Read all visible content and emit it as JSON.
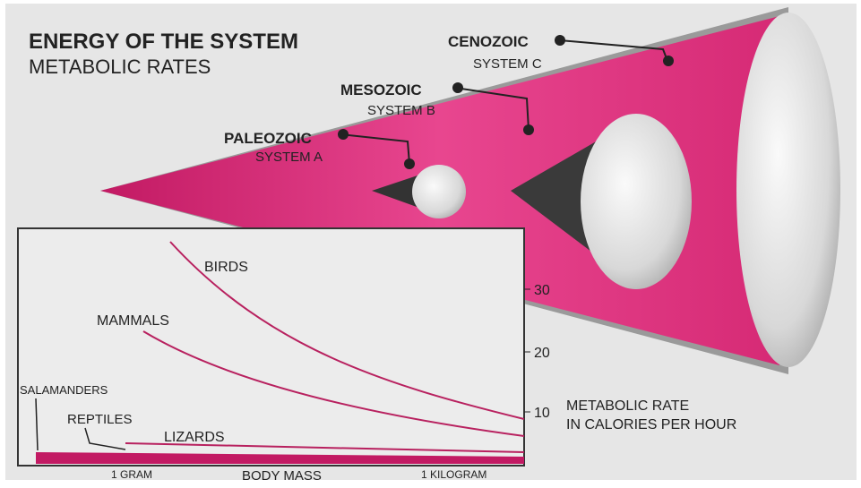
{
  "header": {
    "title": "ENERGY OF THE SYSTEM",
    "subtitle": "METABOLIC RATES"
  },
  "eras": [
    {
      "name": "PALEOZOIC",
      "system": "SYSTEM A"
    },
    {
      "name": "MESOZOIC",
      "system": "SYSTEM B"
    },
    {
      "name": "CENOZOIC",
      "system": "SYSTEM C"
    }
  ],
  "inset": {
    "curves": [
      "BIRDS",
      "MAMMALS",
      "LIZARDS",
      "REPTILES",
      "SALAMANDERS"
    ],
    "yticks": [
      "30",
      "20",
      "10"
    ],
    "y_label": [
      "METABOLIC RATE",
      "IN CALORIES PER HOUR"
    ],
    "x_label": "BODY MASS",
    "x_marks": [
      "1 GRAM",
      "1 KILOGRAM"
    ]
  }
}
